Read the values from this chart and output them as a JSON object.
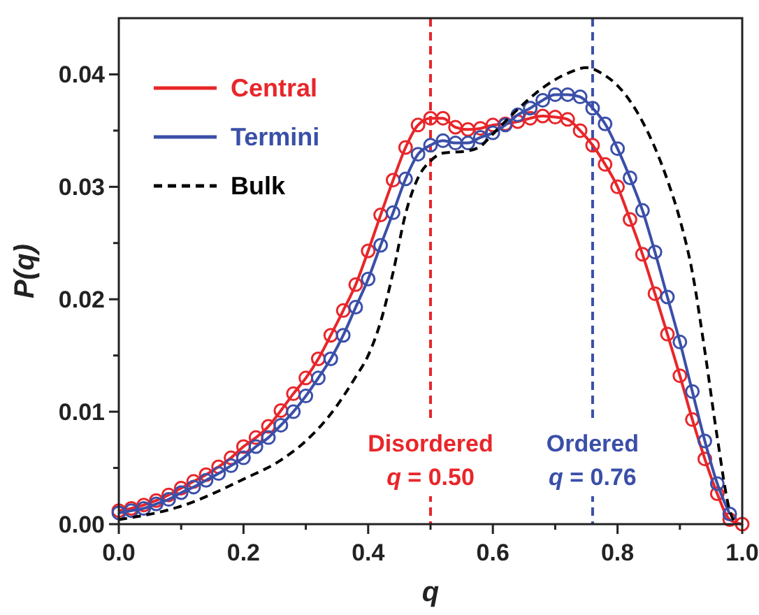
{
  "chart_data": {
    "type": "line",
    "xlabel": "q",
    "ylabel": "P(q)",
    "xlim": [
      0,
      1
    ],
    "ylim": [
      0,
      0.045
    ],
    "xticks": [
      {
        "value": 0,
        "label": "0.0"
      },
      {
        "value": 0.1,
        "label": null
      },
      {
        "value": 0.2,
        "label": "0.2"
      },
      {
        "value": 0.3,
        "label": null
      },
      {
        "value": 0.4,
        "label": "0.4"
      },
      {
        "value": 0.5,
        "label": null
      },
      {
        "value": 0.6,
        "label": "0.6"
      },
      {
        "value": 0.7,
        "label": null
      },
      {
        "value": 0.8,
        "label": "0.8"
      },
      {
        "value": 0.9,
        "label": null
      },
      {
        "value": 1,
        "label": "1.0"
      }
    ],
    "yticks": [
      {
        "value": 0,
        "label": "0.00"
      },
      {
        "value": 0.005,
        "label": null
      },
      {
        "value": 0.01,
        "label": "0.01"
      },
      {
        "value": 0.015,
        "label": null
      },
      {
        "value": 0.02,
        "label": "0.02"
      },
      {
        "value": 0.025,
        "label": null
      },
      {
        "value": 0.03,
        "label": "0.03"
      },
      {
        "value": 0.035,
        "label": null
      },
      {
        "value": 0.04,
        "label": "0.04"
      }
    ],
    "grid": false,
    "legend": "top left",
    "marker": "circle",
    "line_style": "solid",
    "x": [
      0,
      0.02,
      0.04,
      0.06,
      0.08,
      0.1,
      0.12,
      0.14,
      0.16,
      0.18,
      0.2,
      0.22,
      0.24,
      0.26,
      0.28,
      0.3,
      0.32,
      0.34,
      0.36,
      0.38,
      0.4,
      0.42,
      0.44,
      0.46,
      0.48,
      0.5,
      0.52,
      0.54,
      0.56,
      0.58,
      0.6,
      0.62,
      0.64,
      0.66,
      0.68,
      0.7,
      0.72,
      0.74,
      0.76,
      0.78,
      0.8,
      0.82,
      0.84,
      0.86,
      0.88,
      0.9,
      0.92,
      0.94,
      0.96,
      0.98,
      1
    ],
    "series": [
      {
        "name": "Central",
        "color": "#e8262a",
        "values": [
          0.0012,
          0.0014,
          0.0017,
          0.0021,
          0.0026,
          0.0032,
          0.0038,
          0.0044,
          0.0051,
          0.0059,
          0.0069,
          0.0077,
          0.0087,
          0.0101,
          0.0116,
          0.013,
          0.0147,
          0.0168,
          0.019,
          0.0213,
          0.0243,
          0.0275,
          0.0306,
          0.0335,
          0.0355,
          0.0361,
          0.0361,
          0.0353,
          0.0351,
          0.0352,
          0.0355,
          0.0356,
          0.0358,
          0.0361,
          0.0363,
          0.0362,
          0.036,
          0.035,
          0.0337,
          0.032,
          0.03,
          0.0271,
          0.024,
          0.0205,
          0.0169,
          0.0132,
          0.0093,
          0.0058,
          0.0027,
          0.0004,
          0
        ]
      },
      {
        "name": "Termini",
        "color": "#3a4fa8",
        "values": [
          0.001,
          0.0012,
          0.0014,
          0.0018,
          0.0022,
          0.0028,
          0.0033,
          0.0039,
          0.0045,
          0.0052,
          0.0059,
          0.0069,
          0.0077,
          0.0088,
          0.01,
          0.0114,
          0.013,
          0.0147,
          0.0168,
          0.0193,
          0.0218,
          0.0248,
          0.0277,
          0.0307,
          0.0329,
          0.0337,
          0.0341,
          0.0339,
          0.0339,
          0.0344,
          0.0348,
          0.0355,
          0.0364,
          0.037,
          0.0377,
          0.0382,
          0.0382,
          0.038,
          0.037,
          0.0356,
          0.0334,
          0.0308,
          0.0279,
          0.0242,
          0.0202,
          0.0162,
          0.0118,
          0.0074,
          0.0036,
          0.0009,
          null
        ]
      },
      {
        "name": "Bulk",
        "color": "#000000",
        "marker": "none",
        "line_style": "dashed",
        "x": [
          0,
          0.1,
          0.2,
          0.26,
          0.3,
          0.34,
          0.38,
          0.4,
          0.42,
          0.44,
          0.46,
          0.48,
          0.5,
          0.52,
          0.56,
          0.58,
          0.6,
          0.64,
          0.68,
          0.72,
          0.75,
          0.78,
          0.8,
          0.84,
          0.88,
          0.9,
          0.92,
          0.94,
          0.96,
          0.98,
          0.99
        ],
        "values": [
          0.0004,
          0.0016,
          0.004,
          0.0057,
          0.0074,
          0.0098,
          0.0131,
          0.015,
          0.018,
          0.0224,
          0.0276,
          0.0308,
          0.0323,
          0.033,
          0.0332,
          0.0336,
          0.0347,
          0.0369,
          0.0388,
          0.0401,
          0.0406,
          0.0399,
          0.039,
          0.0358,
          0.0306,
          0.0271,
          0.0224,
          0.0154,
          0.0077,
          0.0012,
          0
        ]
      }
    ],
    "ref_lines": [
      {
        "axis": "x",
        "value": 0.5,
        "label": "Disordered q = 0.50",
        "color": "#e8262a",
        "line_style": "dashed"
      },
      {
        "axis": "x",
        "value": 0.76,
        "label": "Ordered q = 0.76",
        "color": "#3a4fa8",
        "line_style": "dashed"
      }
    ]
  }
}
